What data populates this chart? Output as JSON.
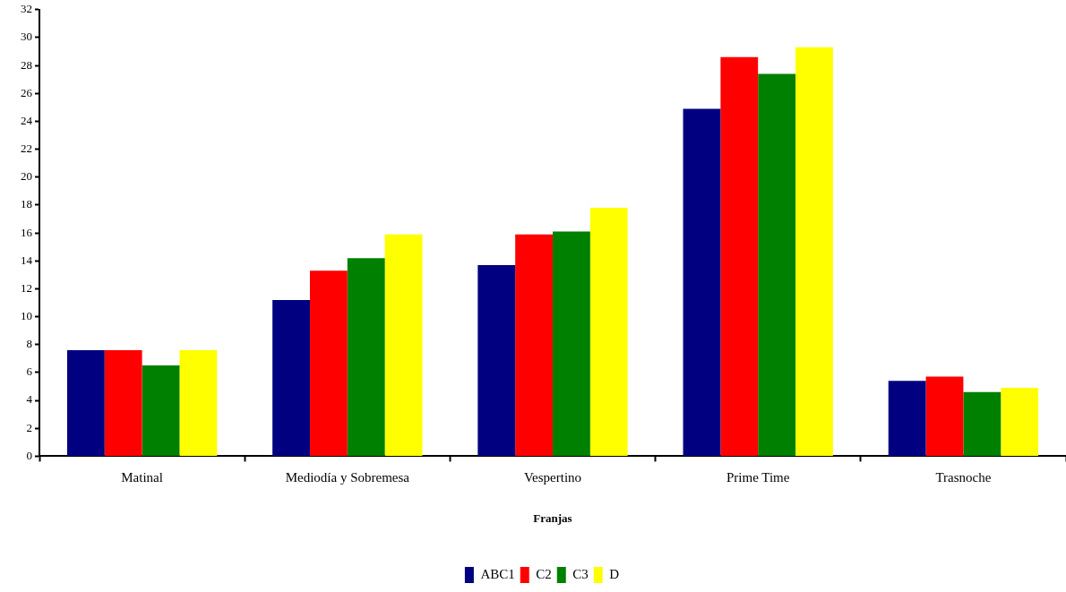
{
  "chart_data": {
    "type": "bar",
    "xlabel": "Franjas",
    "categories": [
      "Matinal",
      "Mediodía y Sobremesa",
      "Vespertino",
      "Prime Time",
      "Trasnoche"
    ],
    "series": [
      {
        "name": "ABC1",
        "color": "#000080",
        "values": [
          7.6,
          11.2,
          13.7,
          24.9,
          5.4
        ]
      },
      {
        "name": "C2",
        "color": "#ff0000",
        "values": [
          7.6,
          13.3,
          15.9,
          28.6,
          5.7
        ]
      },
      {
        "name": "C3",
        "color": "#008000",
        "values": [
          6.5,
          14.2,
          16.1,
          27.4,
          4.6
        ]
      },
      {
        "name": "D",
        "color": "#ffff00",
        "values": [
          7.6,
          15.9,
          17.8,
          29.3,
          4.9
        ]
      }
    ],
    "ylim": [
      0,
      32
    ],
    "yticks": [
      0,
      2,
      4,
      6,
      8,
      10,
      12,
      14,
      16,
      18,
      20,
      22,
      24,
      26,
      28,
      30,
      32
    ],
    "grid": false,
    "legend": "bottom"
  }
}
